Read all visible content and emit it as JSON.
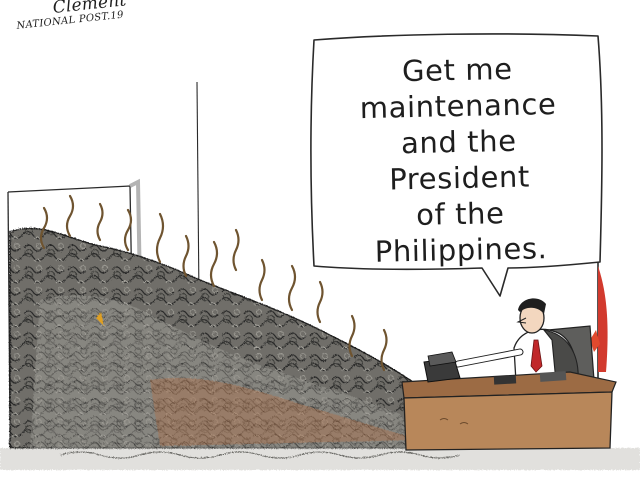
{
  "cartoon": {
    "signature": {
      "name": "Clement",
      "publication": "NATIONAL POST.19"
    },
    "speech_bubble": {
      "text": "Get me\nmaintenance\nand the\nPresident\nof the\nPhilippines."
    }
  },
  "colors": {
    "background": "#ffffff",
    "ink": "#1e1e1e",
    "garbage_dark": "#4a4a48",
    "garbage_mid": "#7c7a74",
    "desk": "#b8875a",
    "flag_red": "#d23a2e",
    "steam": "#8a6a3a",
    "shirt": "#ffffff",
    "tie": "#c0282a"
  }
}
